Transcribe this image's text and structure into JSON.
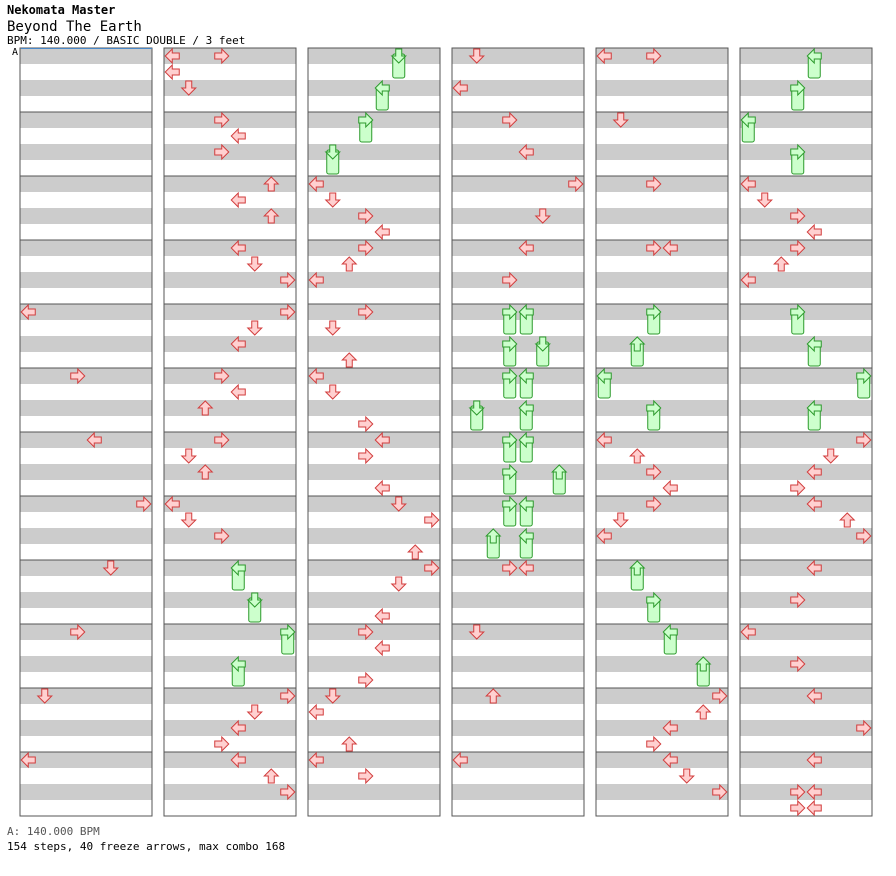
{
  "header": {
    "game": "Nekomata Master",
    "song": "Beyond The Earth",
    "meta": "BPM: 140.000 / BASIC DOUBLE / 3 feet"
  },
  "bpm_marker": {
    "label": "A"
  },
  "footer": {
    "bpm": "A: 140.000 BPM",
    "stats": "154 steps, 40 freeze arrows, max combo 168"
  },
  "colors": {
    "stripe_gray": "#cccccc",
    "stripe_white": "#ffffff",
    "border": "#555555",
    "arrow_fill": "#ffd0d0",
    "arrow_stroke": "#d23c3c",
    "freeze_fill": "#ccffcc",
    "freeze_stroke": "#2c9a2c"
  },
  "chart_data": {
    "type": "step-chart",
    "columns": 6,
    "lanes": 8,
    "lane_order": [
      "L1",
      "D1",
      "U1",
      "R1",
      "L2",
      "D2",
      "U2",
      "R2"
    ],
    "beats_per_column": 48,
    "arrows": [
      {
        "c": 0,
        "l": 0,
        "b": 16
      },
      {
        "c": 0,
        "l": 3,
        "b": 20
      },
      {
        "c": 0,
        "l": 4,
        "b": 24
      },
      {
        "c": 0,
        "l": 7,
        "b": 28
      },
      {
        "c": 0,
        "l": 5,
        "b": 32
      },
      {
        "c": 0,
        "l": 3,
        "b": 36
      },
      {
        "c": 0,
        "l": 1,
        "b": 40
      },
      {
        "c": 0,
        "l": 0,
        "b": 44
      },
      {
        "c": 1,
        "l": 0,
        "b": 0
      },
      {
        "c": 1,
        "l": 3,
        "b": 0
      },
      {
        "c": 1,
        "l": 0,
        "b": 1
      },
      {
        "c": 1,
        "l": 1,
        "b": 2
      },
      {
        "c": 1,
        "l": 3,
        "b": 4
      },
      {
        "c": 1,
        "l": 4,
        "b": 5
      },
      {
        "c": 1,
        "l": 3,
        "b": 6
      },
      {
        "c": 1,
        "l": 6,
        "b": 8
      },
      {
        "c": 1,
        "l": 4,
        "b": 9
      },
      {
        "c": 1,
        "l": 6,
        "b": 10
      },
      {
        "c": 1,
        "l": 4,
        "b": 12
      },
      {
        "c": 1,
        "l": 5,
        "b": 13
      },
      {
        "c": 1,
        "l": 7,
        "b": 14
      },
      {
        "c": 1,
        "l": 7,
        "b": 16
      },
      {
        "c": 1,
        "l": 5,
        "b": 17
      },
      {
        "c": 1,
        "l": 4,
        "b": 18
      },
      {
        "c": 1,
        "l": 3,
        "b": 20
      },
      {
        "c": 1,
        "l": 4,
        "b": 21
      },
      {
        "c": 1,
        "l": 2,
        "b": 22
      },
      {
        "c": 1,
        "l": 3,
        "b": 24
      },
      {
        "c": 1,
        "l": 1,
        "b": 25
      },
      {
        "c": 1,
        "l": 2,
        "b": 26
      },
      {
        "c": 1,
        "l": 0,
        "b": 28
      },
      {
        "c": 1,
        "l": 1,
        "b": 29
      },
      {
        "c": 1,
        "l": 3,
        "b": 30
      },
      {
        "c": 1,
        "l": 7,
        "b": 40
      },
      {
        "c": 1,
        "l": 5,
        "b": 41
      },
      {
        "c": 1,
        "l": 4,
        "b": 42
      },
      {
        "c": 1,
        "l": 3,
        "b": 43
      },
      {
        "c": 1,
        "l": 4,
        "b": 44
      },
      {
        "c": 1,
        "l": 6,
        "b": 45
      },
      {
        "c": 1,
        "l": 7,
        "b": 46
      },
      {
        "c": 2,
        "l": 0,
        "b": 8
      },
      {
        "c": 2,
        "l": 1,
        "b": 9
      },
      {
        "c": 2,
        "l": 3,
        "b": 10
      },
      {
        "c": 2,
        "l": 4,
        "b": 11
      },
      {
        "c": 2,
        "l": 3,
        "b": 12
      },
      {
        "c": 2,
        "l": 2,
        "b": 13
      },
      {
        "c": 2,
        "l": 0,
        "b": 14
      },
      {
        "c": 2,
        "l": 3,
        "b": 16
      },
      {
        "c": 2,
        "l": 1,
        "b": 17
      },
      {
        "c": 2,
        "l": 2,
        "b": 19
      },
      {
        "c": 2,
        "l": 0,
        "b": 20
      },
      {
        "c": 2,
        "l": 1,
        "b": 21
      },
      {
        "c": 2,
        "l": 3,
        "b": 23
      },
      {
        "c": 2,
        "l": 4,
        "b": 24
      },
      {
        "c": 2,
        "l": 3,
        "b": 25
      },
      {
        "c": 2,
        "l": 4,
        "b": 27
      },
      {
        "c": 2,
        "l": 5,
        "b": 28
      },
      {
        "c": 2,
        "l": 7,
        "b": 29
      },
      {
        "c": 2,
        "l": 6,
        "b": 31
      },
      {
        "c": 2,
        "l": 7,
        "b": 32
      },
      {
        "c": 2,
        "l": 5,
        "b": 33
      },
      {
        "c": 2,
        "l": 4,
        "b": 35
      },
      {
        "c": 2,
        "l": 3,
        "b": 36
      },
      {
        "c": 2,
        "l": 4,
        "b": 37
      },
      {
        "c": 2,
        "l": 3,
        "b": 39
      },
      {
        "c": 2,
        "l": 1,
        "b": 40
      },
      {
        "c": 2,
        "l": 0,
        "b": 41
      },
      {
        "c": 2,
        "l": 2,
        "b": 43
      },
      {
        "c": 2,
        "l": 0,
        "b": 44
      },
      {
        "c": 2,
        "l": 3,
        "b": 45
      },
      {
        "c": 3,
        "l": 1,
        "b": 0
      },
      {
        "c": 3,
        "l": 0,
        "b": 2
      },
      {
        "c": 3,
        "l": 3,
        "b": 4
      },
      {
        "c": 3,
        "l": 4,
        "b": 6
      },
      {
        "c": 3,
        "l": 7,
        "b": 8
      },
      {
        "c": 3,
        "l": 5,
        "b": 10
      },
      {
        "c": 3,
        "l": 4,
        "b": 12
      },
      {
        "c": 3,
        "l": 3,
        "b": 14
      },
      {
        "c": 3,
        "l": 3,
        "b": 32
      },
      {
        "c": 3,
        "l": 4,
        "b": 32
      },
      {
        "c": 3,
        "l": 1,
        "b": 36
      },
      {
        "c": 3,
        "l": 2,
        "b": 40
      },
      {
        "c": 3,
        "l": 0,
        "b": 44
      },
      {
        "c": 4,
        "l": 0,
        "b": 0
      },
      {
        "c": 4,
        "l": 3,
        "b": 0
      },
      {
        "c": 4,
        "l": 1,
        "b": 4
      },
      {
        "c": 4,
        "l": 3,
        "b": 8
      },
      {
        "c": 4,
        "l": 3,
        "b": 12
      },
      {
        "c": 4,
        "l": 4,
        "b": 12
      },
      {
        "c": 4,
        "l": 0,
        "b": 24
      },
      {
        "c": 4,
        "l": 2,
        "b": 25
      },
      {
        "c": 4,
        "l": 3,
        "b": 26
      },
      {
        "c": 4,
        "l": 4,
        "b": 27
      },
      {
        "c": 4,
        "l": 3,
        "b": 28
      },
      {
        "c": 4,
        "l": 1,
        "b": 29
      },
      {
        "c": 4,
        "l": 0,
        "b": 30
      },
      {
        "c": 4,
        "l": 7,
        "b": 40
      },
      {
        "c": 4,
        "l": 6,
        "b": 41
      },
      {
        "c": 4,
        "l": 4,
        "b": 42
      },
      {
        "c": 4,
        "l": 3,
        "b": 43
      },
      {
        "c": 4,
        "l": 4,
        "b": 44
      },
      {
        "c": 4,
        "l": 5,
        "b": 45
      },
      {
        "c": 4,
        "l": 7,
        "b": 46
      },
      {
        "c": 5,
        "l": 0,
        "b": 8
      },
      {
        "c": 5,
        "l": 1,
        "b": 9
      },
      {
        "c": 5,
        "l": 3,
        "b": 10
      },
      {
        "c": 5,
        "l": 4,
        "b": 11
      },
      {
        "c": 5,
        "l": 3,
        "b": 12
      },
      {
        "c": 5,
        "l": 2,
        "b": 13
      },
      {
        "c": 5,
        "l": 0,
        "b": 14
      },
      {
        "c": 5,
        "l": 7,
        "b": 24
      },
      {
        "c": 5,
        "l": 5,
        "b": 25
      },
      {
        "c": 5,
        "l": 4,
        "b": 26
      },
      {
        "c": 5,
        "l": 3,
        "b": 27
      },
      {
        "c": 5,
        "l": 4,
        "b": 28
      },
      {
        "c": 5,
        "l": 6,
        "b": 29
      },
      {
        "c": 5,
        "l": 7,
        "b": 30
      },
      {
        "c": 5,
        "l": 4,
        "b": 32
      },
      {
        "c": 5,
        "l": 3,
        "b": 34
      },
      {
        "c": 5,
        "l": 0,
        "b": 36
      },
      {
        "c": 5,
        "l": 3,
        "b": 38
      },
      {
        "c": 5,
        "l": 4,
        "b": 40
      },
      {
        "c": 5,
        "l": 7,
        "b": 42
      },
      {
        "c": 5,
        "l": 4,
        "b": 44
      },
      {
        "c": 5,
        "l": 3,
        "b": 46
      },
      {
        "c": 5,
        "l": 4,
        "b": 46
      },
      {
        "c": 5,
        "l": 3,
        "b": 47
      },
      {
        "c": 5,
        "l": 4,
        "b": 47
      }
    ],
    "freezes": [
      {
        "c": 1,
        "l": 4,
        "b": 32,
        "len": 1.5
      },
      {
        "c": 1,
        "l": 5,
        "b": 34,
        "len": 1.5
      },
      {
        "c": 1,
        "l": 7,
        "b": 36,
        "len": 1.5
      },
      {
        "c": 1,
        "l": 4,
        "b": 38,
        "len": 1.5
      },
      {
        "c": 2,
        "l": 5,
        "b": 0,
        "len": 1.5
      },
      {
        "c": 2,
        "l": 4,
        "b": 2,
        "len": 1.5
      },
      {
        "c": 2,
        "l": 3,
        "b": 4,
        "len": 1.5
      },
      {
        "c": 2,
        "l": 1,
        "b": 6,
        "len": 1.5
      },
      {
        "c": 3,
        "l": 3,
        "b": 16,
        "len": 1.5
      },
      {
        "c": 3,
        "l": 4,
        "b": 16,
        "len": 1.5
      },
      {
        "c": 3,
        "l": 3,
        "b": 18,
        "len": 1.5
      },
      {
        "c": 3,
        "l": 5,
        "b": 18,
        "len": 1.5
      },
      {
        "c": 3,
        "l": 3,
        "b": 20,
        "len": 1.5
      },
      {
        "c": 3,
        "l": 4,
        "b": 20,
        "len": 1.5
      },
      {
        "c": 3,
        "l": 1,
        "b": 22,
        "len": 1.5
      },
      {
        "c": 3,
        "l": 4,
        "b": 22,
        "len": 1.5
      },
      {
        "c": 3,
        "l": 3,
        "b": 24,
        "len": 1.5
      },
      {
        "c": 3,
        "l": 4,
        "b": 24,
        "len": 1.5
      },
      {
        "c": 3,
        "l": 3,
        "b": 26,
        "len": 1.5
      },
      {
        "c": 3,
        "l": 6,
        "b": 26,
        "len": 1.5
      },
      {
        "c": 3,
        "l": 3,
        "b": 28,
        "len": 1.5
      },
      {
        "c": 3,
        "l": 4,
        "b": 28,
        "len": 1.5
      },
      {
        "c": 3,
        "l": 2,
        "b": 30,
        "len": 1.5
      },
      {
        "c": 3,
        "l": 4,
        "b": 30,
        "len": 1.5
      },
      {
        "c": 4,
        "l": 3,
        "b": 16,
        "len": 1.5
      },
      {
        "c": 4,
        "l": 2,
        "b": 18,
        "len": 1.5
      },
      {
        "c": 4,
        "l": 0,
        "b": 20,
        "len": 1.5
      },
      {
        "c": 4,
        "l": 3,
        "b": 22,
        "len": 1.5
      },
      {
        "c": 4,
        "l": 2,
        "b": 32,
        "len": 1.5
      },
      {
        "c": 4,
        "l": 3,
        "b": 34,
        "len": 1.5
      },
      {
        "c": 4,
        "l": 4,
        "b": 36,
        "len": 1.5
      },
      {
        "c": 4,
        "l": 6,
        "b": 38,
        "len": 1.5
      },
      {
        "c": 5,
        "l": 4,
        "b": 0,
        "len": 1.5
      },
      {
        "c": 5,
        "l": 3,
        "b": 2,
        "len": 1.5
      },
      {
        "c": 5,
        "l": 0,
        "b": 4,
        "len": 1.5
      },
      {
        "c": 5,
        "l": 3,
        "b": 6,
        "len": 1.5
      },
      {
        "c": 5,
        "l": 3,
        "b": 16,
        "len": 1.5
      },
      {
        "c": 5,
        "l": 4,
        "b": 18,
        "len": 1.5
      },
      {
        "c": 5,
        "l": 7,
        "b": 20,
        "len": 1.5
      },
      {
        "c": 5,
        "l": 4,
        "b": 22,
        "len": 1.5
      }
    ]
  }
}
